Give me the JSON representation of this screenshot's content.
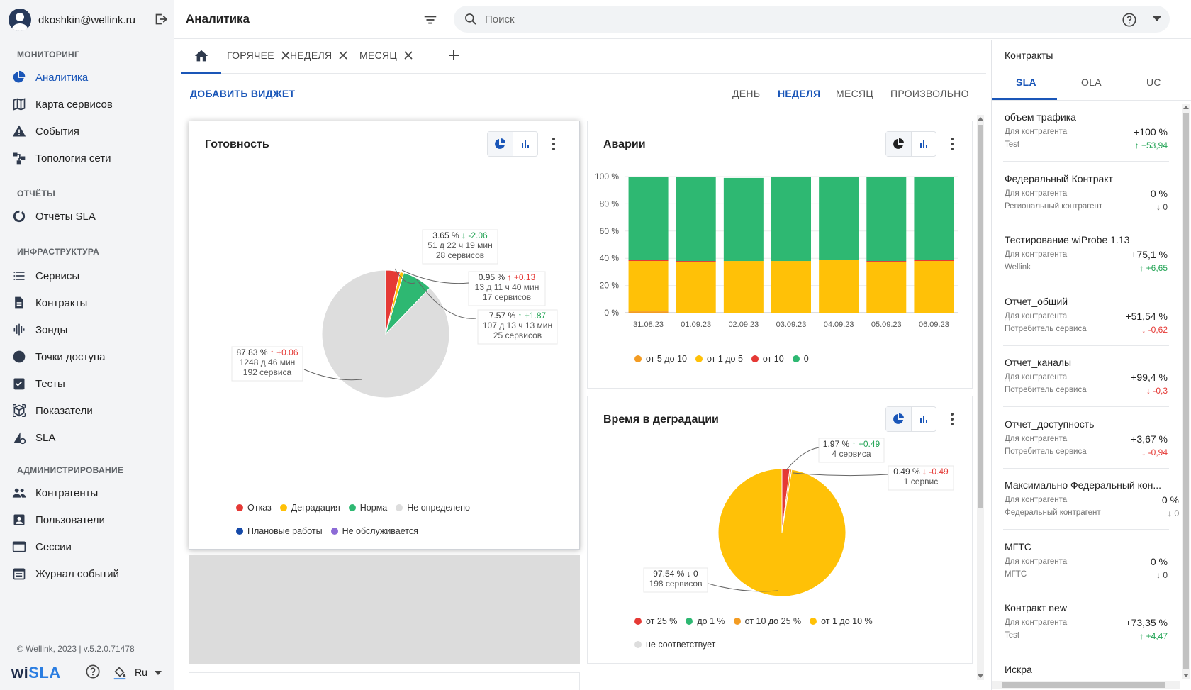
{
  "user": {
    "email": "dkoshkin@wellink.ru"
  },
  "sidebar": {
    "sections": [
      {
        "title": "МОНИТОРИНГ",
        "items": [
          {
            "label": "Аналитика",
            "icon": "pie-chart-icon",
            "active": true
          },
          {
            "label": "Карта сервисов",
            "icon": "map-icon"
          },
          {
            "label": "События",
            "icon": "warning-icon"
          },
          {
            "label": "Топология сети",
            "icon": "topology-icon"
          }
        ]
      },
      {
        "title": "ОТЧЁТЫ",
        "items": [
          {
            "label": "Отчёты SLA",
            "icon": "donut-icon"
          }
        ]
      },
      {
        "title": "ИНФРАСТРУКТУРА",
        "items": [
          {
            "label": "Сервисы",
            "icon": "list-icon"
          },
          {
            "label": "Контракты",
            "icon": "document-icon"
          },
          {
            "label": "Зонды",
            "icon": "waveform-icon"
          },
          {
            "label": "Точки доступа",
            "icon": "circle-icon"
          },
          {
            "label": "Тесты",
            "icon": "checklist-icon"
          },
          {
            "label": "Показатели",
            "icon": "cube-icon"
          },
          {
            "label": "SLA",
            "icon": "sla-icon"
          }
        ]
      },
      {
        "title": "АДМИНИСТРИРОВАНИЕ",
        "items": [
          {
            "label": "Контрагенты",
            "icon": "people-icon"
          },
          {
            "label": "Пользователи",
            "icon": "user-card-icon"
          },
          {
            "label": "Сессии",
            "icon": "window-icon"
          },
          {
            "label": "Журнал событий",
            "icon": "calendar-icon"
          }
        ]
      }
    ],
    "copyright": "© Wellink, 2023 | v.5.2.0.71478",
    "logo": {
      "part1": "wi",
      "part2": "SLA"
    },
    "language": "Ru"
  },
  "header": {
    "title": "Аналитика",
    "search_placeholder": "Поиск"
  },
  "tabs": [
    {
      "label": "ГОРЯЧЕЕ"
    },
    {
      "label": "НЕДЕЛЯ"
    },
    {
      "label": "МЕСЯЦ"
    }
  ],
  "toolbar": {
    "add_widget": "ДОБАВИТЬ ВИДЖЕТ",
    "periods": [
      {
        "label": "ДЕНЬ"
      },
      {
        "label": "НЕДЕЛЯ",
        "active": true
      },
      {
        "label": "МЕСЯЦ"
      },
      {
        "label": "ПРОИЗВОЛЬНО"
      }
    ]
  },
  "widgets": {
    "readiness": {
      "title": "Готовность",
      "legend": [
        {
          "label": "Отказ",
          "color": "#e53935"
        },
        {
          "label": "Деградация",
          "color": "#ffc107"
        },
        {
          "label": "Норма",
          "color": "#2eb872"
        },
        {
          "label": "Не определено",
          "color": "#dddddd"
        },
        {
          "label": "Плановые работы",
          "color": "#1549a8"
        },
        {
          "label": "Не обслуживается",
          "color": "#8c6bd6"
        }
      ]
    },
    "accidents": {
      "title": "Аварии",
      "legend": [
        {
          "label": "от 5 до 10",
          "color": "#f39c23"
        },
        {
          "label": "от 1 до 5",
          "color": "#ffc107"
        },
        {
          "label": "от 10",
          "color": "#e53935"
        },
        {
          "label": "0",
          "color": "#2eb872"
        }
      ]
    },
    "degradation": {
      "title": "Время в деградации",
      "legend": [
        {
          "label": "от 25 %",
          "color": "#e53935"
        },
        {
          "label": "до 1 %",
          "color": "#2eb872"
        },
        {
          "label": "от 10 до 25 %",
          "color": "#f39c23"
        },
        {
          "label": "от 1 до 10 %",
          "color": "#ffc107"
        },
        {
          "label": "не соответствует",
          "color": "#dddddd"
        }
      ]
    }
  },
  "chart_data": [
    {
      "type": "pie",
      "slices": [
        {
          "name": "Отказ",
          "value": 3.65,
          "color": "#e53935",
          "delta": "-2.06",
          "delta_dir": "down",
          "duration": "51 д 22 ч 19 мин",
          "count": "28 сервисов"
        },
        {
          "name": "Деградация",
          "value": 0.95,
          "color": "#ffc107",
          "delta": "+0.13",
          "delta_dir": "up",
          "duration": "13 д 11 ч 40 мин",
          "count": "17 сервисов"
        },
        {
          "name": "Норма",
          "value": 7.57,
          "color": "#2eb872",
          "delta": "+1.87",
          "delta_dir": "up",
          "duration": "107 д 13 ч 13 мин",
          "count": "25 сервисов"
        },
        {
          "name": "Не определено",
          "value": 87.83,
          "color": "#dddddd",
          "delta": "+0.06",
          "delta_dir": "up",
          "duration": "1248 д 46 мин",
          "count": "192 сервиса"
        }
      ],
      "labels": [
        {
          "value": "3.65 %",
          "delta": "-2.06",
          "delta_dir": "down",
          "duration": "51 д 22 ч 19 мин",
          "count": "28 сервисов"
        },
        {
          "value": "0.95 %",
          "delta": "+0.13",
          "delta_dir": "up",
          "duration": "13 д 11 ч 40 мин",
          "count": "17 сервисов"
        },
        {
          "value": "7.57 %",
          "delta": "+1.87",
          "delta_dir": "up",
          "duration": "107 д 13 ч 13 мин",
          "count": "25 сервисов"
        },
        {
          "value": "87.83 %",
          "delta": "+0.06",
          "delta_dir": "up",
          "duration": "1248 д 46 мин",
          "count": "192 сервиса"
        }
      ]
    },
    {
      "type": "bar",
      "stacked": true,
      "categories": [
        "31.08.23",
        "01.09.23",
        "02.09.23",
        "03.09.23",
        "04.09.23",
        "05.09.23",
        "06.09.23"
      ],
      "yticks": [
        "0 %",
        "20 %",
        "40 %",
        "60 %",
        "80 %",
        "100 %"
      ],
      "ylim": [
        0,
        100
      ],
      "series": [
        {
          "name": "от 5 до 10",
          "color": "#f39c23",
          "values": [
            1,
            0,
            0,
            0,
            0,
            0,
            0
          ]
        },
        {
          "name": "от 1 до 5",
          "color": "#ffc107",
          "values": [
            37,
            37,
            38,
            38,
            39,
            37,
            38
          ]
        },
        {
          "name": "от 10",
          "color": "#e53935",
          "values": [
            1,
            1,
            0,
            0,
            0,
            1,
            1
          ]
        },
        {
          "name": "0",
          "color": "#2eb872",
          "values": [
            61,
            62,
            61,
            62,
            61,
            62,
            61
          ]
        }
      ]
    },
    {
      "type": "pie",
      "slices": [
        {
          "name": "от 25 %",
          "value": 1.97,
          "color": "#e53935"
        },
        {
          "name": "от 10 до 25 %",
          "value": 0.49,
          "color": "#f39c23"
        },
        {
          "name": "от 1 до 10 %",
          "value": 97.54,
          "color": "#ffc107"
        }
      ],
      "labels": [
        {
          "value": "1.97 %",
          "delta": "+0.49",
          "delta_dir": "up",
          "count": "4 сервиса"
        },
        {
          "value": "0.49 %",
          "delta": "-0.49",
          "delta_dir": "down",
          "count": "1 сервис"
        },
        {
          "value": "97.54 %",
          "delta": "0",
          "delta_dir": "down",
          "count": "198 сервисов"
        }
      ]
    }
  ],
  "contracts_panel": {
    "title": "Контракты",
    "tabs": [
      {
        "label": "SLA",
        "active": true
      },
      {
        "label": "OLA"
      },
      {
        "label": "UC"
      }
    ],
    "items": [
      {
        "name": "объем трафика",
        "role": "Для контрагента",
        "party": "Test",
        "value": "+100 %",
        "delta": "+53,94",
        "dir": "up"
      },
      {
        "name": "Федеральный Контракт",
        "role": "Для контрагента",
        "party": "Региональный контрагент",
        "value": "0 %",
        "delta": "0",
        "dir": "zero"
      },
      {
        "name": "Тестирование wiProbe 1.13",
        "role": "Для контрагента",
        "party": "Wellink",
        "value": "+75,1 %",
        "delta": "+6,65",
        "dir": "up"
      },
      {
        "name": "Отчет_общий",
        "role": "Для контрагента",
        "party": "Потребитель сервиса",
        "value": "+51,54 %",
        "delta": "-0,62",
        "dir": "down"
      },
      {
        "name": "Отчет_каналы",
        "role": "Для контрагента",
        "party": "Потребитель сервиса",
        "value": "+99,4 %",
        "delta": "-0,3",
        "dir": "down"
      },
      {
        "name": "Отчет_доступность",
        "role": "Для контрагента",
        "party": "Потребитель сервиса",
        "value": "+3,67 %",
        "delta": "-0,94",
        "dir": "down"
      },
      {
        "name": "Максимально Федеральный кон...",
        "role": "Для контрагента",
        "party": "Федеральный контрагент",
        "value": "0 %",
        "delta": "0",
        "dir": "zero"
      },
      {
        "name": "МГТС",
        "role": "Для контрагента",
        "party": "МГТС",
        "value": "0 %",
        "delta": "0",
        "dir": "zero"
      },
      {
        "name": "Контракт new",
        "role": "Для контрагента",
        "party": "Test",
        "value": "+73,35 %",
        "delta": "+4,47",
        "dir": "up"
      },
      {
        "name": "Искра",
        "role": "",
        "party": "",
        "value": "",
        "delta": "",
        "dir": "zero"
      }
    ]
  }
}
